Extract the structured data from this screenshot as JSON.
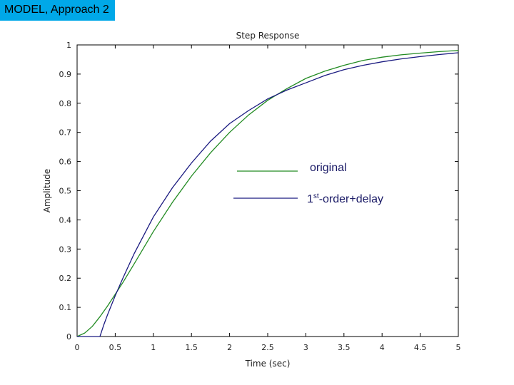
{
  "slide": {
    "tag": "MODEL, Approach 2"
  },
  "chart_data": {
    "type": "line",
    "title": "Step Response",
    "xlabel": "Time (sec)",
    "ylabel": "Amplitude",
    "xlim": [
      0,
      5
    ],
    "ylim": [
      0,
      1
    ],
    "xticks": [
      "0",
      "0.5",
      "1",
      "1.5",
      "2",
      "2.5",
      "3",
      "3.5",
      "4",
      "4.5",
      "5"
    ],
    "yticks": [
      "0",
      "0.1",
      "0.2",
      "0.3",
      "0.4",
      "0.5",
      "0.6",
      "0.7",
      "0.8",
      "0.9",
      "1"
    ],
    "grid": false,
    "legend": {
      "placement": "center",
      "entries": [
        {
          "label": "original",
          "color": "#228b22"
        },
        {
          "label_main": "1",
          "label_sup": "st",
          "label_rest": "-order+delay",
          "color": "#1a1a80"
        }
      ]
    },
    "series": [
      {
        "color": "#228b22",
        "x": [
          0,
          0.1,
          0.2,
          0.3,
          0.4,
          0.5,
          0.6,
          0.75,
          1.0,
          1.25,
          1.5,
          1.75,
          2.0,
          2.25,
          2.5,
          2.75,
          3.0,
          3.25,
          3.5,
          3.75,
          4.0,
          4.25,
          4.5,
          4.75,
          5.0
        ],
        "y": [
          0,
          0.012,
          0.035,
          0.068,
          0.105,
          0.145,
          0.185,
          0.25,
          0.36,
          0.46,
          0.55,
          0.63,
          0.7,
          0.76,
          0.81,
          0.85,
          0.885,
          0.91,
          0.93,
          0.947,
          0.958,
          0.966,
          0.972,
          0.977,
          0.981
        ]
      },
      {
        "color": "#1a1a80",
        "x": [
          0,
          0.3,
          0.35,
          0.4,
          0.5,
          0.6,
          0.75,
          1.0,
          1.25,
          1.5,
          1.75,
          2.0,
          2.25,
          2.5,
          2.75,
          3.0,
          3.25,
          3.5,
          3.75,
          4.0,
          4.25,
          4.5,
          4.75,
          5.0
        ],
        "y": [
          0,
          0,
          0.04,
          0.075,
          0.14,
          0.2,
          0.285,
          0.41,
          0.51,
          0.595,
          0.67,
          0.73,
          0.775,
          0.815,
          0.845,
          0.87,
          0.895,
          0.915,
          0.93,
          0.942,
          0.952,
          0.96,
          0.967,
          0.973
        ]
      }
    ]
  }
}
